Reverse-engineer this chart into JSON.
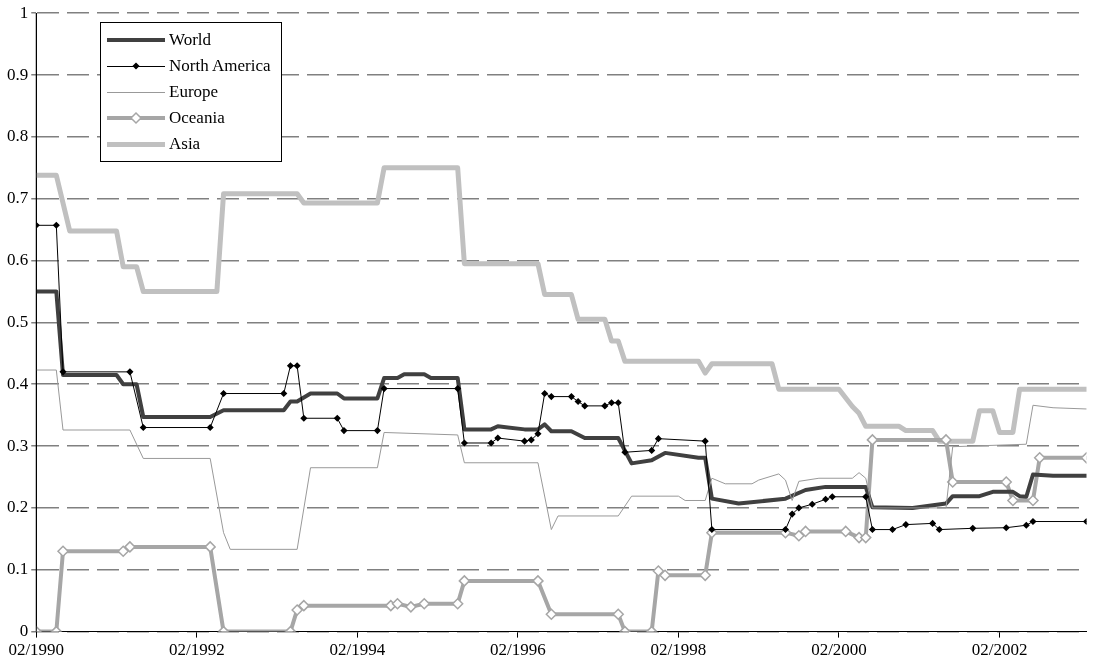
{
  "chart_data": {
    "type": "line",
    "xlim": [
      "1990-02",
      "2003-03"
    ],
    "ylim": [
      0,
      1
    ],
    "xticks": [
      {
        "value": "1990-02",
        "label": "02/1990"
      },
      {
        "value": "1992-02",
        "label": "02/1992"
      },
      {
        "value": "1994-02",
        "label": "02/1994"
      },
      {
        "value": "1996-02",
        "label": "02/1996"
      },
      {
        "value": "1998-02",
        "label": "02/1998"
      },
      {
        "value": "2000-02",
        "label": "02/2000"
      },
      {
        "value": "2002-02",
        "label": "02/2002"
      }
    ],
    "yticks": [
      0,
      0.1,
      0.2,
      0.3,
      0.4,
      0.5,
      0.6,
      0.7,
      0.8,
      0.9,
      1
    ],
    "grid": "y",
    "legend": "top left",
    "series": [
      {
        "name": "World",
        "color": "#404040",
        "marker": "none",
        "x": [
          "1990-02",
          "1990-05",
          "1990-06",
          "1991-02",
          "1991-03",
          "1991-05",
          "1991-06",
          "1992-04",
          "1992-06",
          "1993-03",
          "1993-04",
          "1993-05",
          "1993-07",
          "1993-11",
          "1993-12",
          "1994-05",
          "1994-06",
          "1994-08",
          "1994-09",
          "1994-12",
          "1995-01",
          "1995-05",
          "1995-06",
          "1995-10",
          "1995-11",
          "1996-03",
          "1996-05",
          "1996-06",
          "1996-07",
          "1996-10",
          "1996-12",
          "1997-05",
          "1997-07",
          "1997-10",
          "1997-12",
          "1998-05",
          "1998-06",
          "1998-07",
          "1998-11",
          "1999-06",
          "1999-09",
          "1999-12",
          "2000-06",
          "2000-07",
          "2001-01",
          "2001-06",
          "2001-07",
          "2001-11",
          "2002-01",
          "2002-04",
          "2002-05",
          "2002-06",
          "2002-07",
          "2002-10",
          "2003-03"
        ],
        "values": [
          0.55,
          0.55,
          0.415,
          0.415,
          0.4,
          0.4,
          0.347,
          0.347,
          0.358,
          0.358,
          0.372,
          0.372,
          0.385,
          0.385,
          0.377,
          0.377,
          0.41,
          0.41,
          0.416,
          0.416,
          0.41,
          0.41,
          0.327,
          0.327,
          0.332,
          0.327,
          0.327,
          0.335,
          0.324,
          0.324,
          0.313,
          0.313,
          0.272,
          0.277,
          0.289,
          0.281,
          0.281,
          0.215,
          0.207,
          0.215,
          0.229,
          0.234,
          0.234,
          0.201,
          0.2,
          0.207,
          0.219,
          0.219,
          0.226,
          0.226,
          0.219,
          0.218,
          0.254,
          0.252,
          0.252
        ]
      },
      {
        "name": "North America",
        "color": "#000000",
        "marker": "diamond",
        "x": [
          "1990-02",
          "1990-05",
          "1990-06",
          "1991-04",
          "1991-06",
          "1992-04",
          "1992-06",
          "1993-03",
          "1993-04",
          "1993-05",
          "1993-06",
          "1993-11",
          "1993-12",
          "1994-05",
          "1994-06",
          "1995-05",
          "1995-06",
          "1995-10",
          "1995-11",
          "1996-03",
          "1996-04",
          "1996-05",
          "1996-06",
          "1996-07",
          "1996-10",
          "1996-11",
          "1996-12",
          "1997-03",
          "1997-04",
          "1997-05",
          "1997-06",
          "1997-10",
          "1997-11",
          "1998-06",
          "1998-07",
          "1999-06",
          "1999-07",
          "1999-08",
          "1999-10",
          "1999-12",
          "2000-01",
          "2000-06",
          "2000-07",
          "2000-10",
          "2000-12",
          "2001-04",
          "2001-05",
          "2001-10",
          "2002-03",
          "2002-06",
          "2002-07",
          "2003-03"
        ],
        "values": [
          0.657,
          0.657,
          0.42,
          0.42,
          0.33,
          0.33,
          0.385,
          0.385,
          0.43,
          0.43,
          0.345,
          0.345,
          0.325,
          0.325,
          0.393,
          0.393,
          0.305,
          0.305,
          0.313,
          0.308,
          0.31,
          0.32,
          0.385,
          0.38,
          0.38,
          0.372,
          0.365,
          0.365,
          0.37,
          0.37,
          0.29,
          0.293,
          0.312,
          0.308,
          0.165,
          0.165,
          0.19,
          0.2,
          0.206,
          0.214,
          0.218,
          0.218,
          0.165,
          0.165,
          0.173,
          0.175,
          0.165,
          0.167,
          0.168,
          0.172,
          0.178,
          0.178
        ]
      },
      {
        "name": "Europe",
        "color": "#999999",
        "marker": "none",
        "x": [
          "1990-02",
          "1990-05",
          "1990-06",
          "1991-04",
          "1991-06",
          "1992-04",
          "1992-06",
          "1992-07",
          "1993-05",
          "1993-07",
          "1994-05",
          "1994-06",
          "1995-05",
          "1995-06",
          "1996-05",
          "1996-07",
          "1996-08",
          "1997-05",
          "1997-07",
          "1998-02",
          "1998-03",
          "1998-06",
          "1998-07",
          "1998-09",
          "1999-01",
          "1999-02",
          "1999-05",
          "1999-06",
          "1999-07",
          "1999-08",
          "1999-11",
          "2000-04",
          "2000-05",
          "2000-06",
          "2000-07",
          "2001-06",
          "2001-07",
          "2002-06",
          "2002-07",
          "2002-10",
          "2003-03"
        ],
        "values": [
          0.423,
          0.423,
          0.326,
          0.326,
          0.28,
          0.28,
          0.16,
          0.133,
          0.133,
          0.265,
          0.265,
          0.322,
          0.318,
          0.273,
          0.273,
          0.165,
          0.187,
          0.187,
          0.219,
          0.219,
          0.212,
          0.212,
          0.248,
          0.239,
          0.239,
          0.245,
          0.255,
          0.245,
          0.212,
          0.243,
          0.248,
          0.248,
          0.257,
          0.248,
          0.2,
          0.2,
          0.299,
          0.303,
          0.366,
          0.362,
          0.36
        ]
      },
      {
        "name": "Oceania",
        "color": "#a6a6a6",
        "marker": "diamond",
        "x": [
          "1990-02",
          "1990-05",
          "1990-06",
          "1991-03",
          "1991-04",
          "1992-04",
          "1992-06",
          "1993-04",
          "1993-05",
          "1993-06",
          "1994-07",
          "1994-08",
          "1994-10",
          "1994-12",
          "1995-05",
          "1995-06",
          "1996-05",
          "1996-07",
          "1997-05",
          "1997-06",
          "1997-10",
          "1997-11",
          "1997-12",
          "1998-06",
          "1998-07",
          "1999-06",
          "1999-08",
          "1999-09",
          "2000-03",
          "2000-05",
          "2000-06",
          "2000-07",
          "2001-06",
          "2001-07",
          "2002-03",
          "2002-04",
          "2002-07",
          "2002-08",
          "2003-03"
        ],
        "values": [
          0,
          0,
          0.13,
          0.13,
          0.137,
          0.137,
          0,
          0,
          0.035,
          0.042,
          0.042,
          0.045,
          0.04,
          0.045,
          0.045,
          0.082,
          0.082,
          0.028,
          0.028,
          0,
          0,
          0.098,
          0.091,
          0.091,
          0.16,
          0.16,
          0.155,
          0.162,
          0.162,
          0.152,
          0.152,
          0.31,
          0.31,
          0.242,
          0.242,
          0.212,
          0.212,
          0.281,
          0.281
        ]
      },
      {
        "name": "Asia",
        "color": "#c0c0c0",
        "marker": "none",
        "x": [
          "1990-02",
          "1990-05",
          "1990-07",
          "1991-02",
          "1991-03",
          "1991-05",
          "1991-06",
          "1992-05",
          "1992-06",
          "1993-05",
          "1993-06",
          "1994-05",
          "1994-06",
          "1995-05",
          "1995-06",
          "1996-05",
          "1996-06",
          "1996-10",
          "1996-11",
          "1997-03",
          "1997-04",
          "1997-05",
          "1997-06",
          "1998-05",
          "1998-06",
          "1998-07",
          "1999-04",
          "1999-05",
          "2000-02",
          "2000-04",
          "2000-05",
          "2000-06",
          "2000-11",
          "2000-12",
          "2001-04",
          "2001-05",
          "2001-10",
          "2001-11",
          "2002-01",
          "2002-02",
          "2002-04",
          "2002-05",
          "2003-03"
        ],
        "values": [
          0.738,
          0.738,
          0.648,
          0.648,
          0.59,
          0.59,
          0.55,
          0.55,
          0.708,
          0.708,
          0.693,
          0.693,
          0.75,
          0.75,
          0.595,
          0.595,
          0.545,
          0.545,
          0.505,
          0.505,
          0.47,
          0.47,
          0.437,
          0.437,
          0.418,
          0.433,
          0.433,
          0.392,
          0.392,
          0.364,
          0.353,
          0.332,
          0.332,
          0.325,
          0.325,
          0.308,
          0.308,
          0.357,
          0.357,
          0.322,
          0.322,
          0.392,
          0.392
        ]
      }
    ]
  }
}
